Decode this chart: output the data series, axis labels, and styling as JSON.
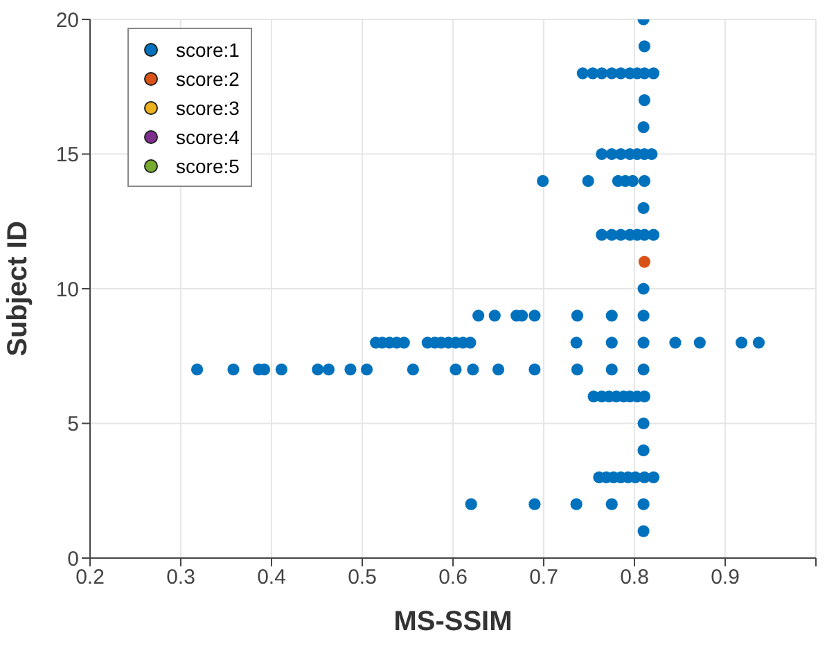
{
  "chart_data": {
    "type": "scatter",
    "xlabel": "MS-SSIM",
    "ylabel": "Subject ID",
    "xlim": [
      0.2,
      1.0
    ],
    "ylim": [
      0,
      20
    ],
    "xticks": [
      0.2,
      0.3,
      0.4,
      0.5,
      0.6,
      0.7,
      0.8,
      0.9,
      {
        "value": 1.0,
        "label": null
      }
    ],
    "yticks": [
      0,
      5,
      10,
      15,
      20
    ],
    "grid": true,
    "legend": "top left",
    "marker": "circle",
    "series": [
      {
        "name": "score:1",
        "color": "#0072bd",
        "x": [
          0.81,
          0.811,
          0.743,
          0.754,
          0.764,
          0.775,
          0.785,
          0.795,
          0.803,
          0.811,
          0.821,
          0.811,
          0.81,
          0.764,
          0.775,
          0.785,
          0.795,
          0.803,
          0.811,
          0.819,
          0.699,
          0.749,
          0.782,
          0.79,
          0.798,
          0.811,
          0.81,
          0.764,
          0.775,
          0.785,
          0.795,
          0.803,
          0.811,
          0.821,
          0.81,
          0.628,
          0.646,
          0.67,
          0.676,
          0.69,
          0.737,
          0.775,
          0.81,
          0.515,
          0.522,
          0.53,
          0.538,
          0.546,
          0.572,
          0.58,
          0.587,
          0.595,
          0.603,
          0.611,
          0.619,
          0.736,
          0.775,
          0.81,
          0.845,
          0.872,
          0.918,
          0.937,
          0.318,
          0.358,
          0.386,
          0.392,
          0.411,
          0.451,
          0.463,
          0.487,
          0.505,
          0.556,
          0.603,
          0.622,
          0.65,
          0.69,
          0.737,
          0.775,
          0.81,
          0.755,
          0.764,
          0.772,
          0.78,
          0.788,
          0.795,
          0.803,
          0.811,
          0.81,
          0.81,
          0.761,
          0.769,
          0.777,
          0.785,
          0.793,
          0.801,
          0.811,
          0.821,
          0.62,
          0.69,
          0.736,
          0.775,
          0.81,
          0.81
        ],
        "values": [
          20,
          19,
          18,
          18,
          18,
          18,
          18,
          18,
          18,
          18,
          18,
          17,
          16,
          15,
          15,
          15,
          15,
          15,
          15,
          15,
          14,
          14,
          14,
          14,
          14,
          14,
          13,
          12,
          12,
          12,
          12,
          12,
          12,
          12,
          10,
          9,
          9,
          9,
          9,
          9,
          9,
          9,
          9,
          8,
          8,
          8,
          8,
          8,
          8,
          8,
          8,
          8,
          8,
          8,
          8,
          8,
          8,
          8,
          8,
          8,
          8,
          8,
          7,
          7,
          7,
          7,
          7,
          7,
          7,
          7,
          7,
          7,
          7,
          7,
          7,
          7,
          7,
          7,
          7,
          6,
          6,
          6,
          6,
          6,
          6,
          6,
          6,
          5,
          4,
          3,
          3,
          3,
          3,
          3,
          3,
          3,
          3,
          2,
          2,
          2,
          2,
          2,
          1
        ]
      },
      {
        "name": "score:2",
        "color": "#d95319",
        "x": [
          0.811
        ],
        "values": [
          11
        ]
      },
      {
        "name": "score:3",
        "color": "#edb120"
      },
      {
        "name": "score:4",
        "color": "#7e2f8e"
      },
      {
        "name": "score:5",
        "color": "#77ac30"
      }
    ]
  }
}
